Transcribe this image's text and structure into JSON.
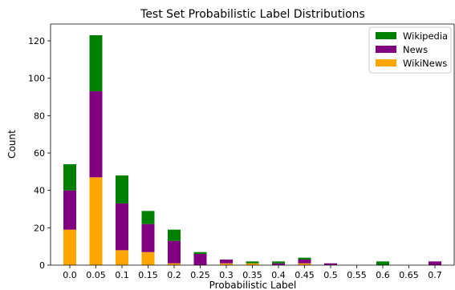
{
  "chart_data": {
    "type": "bar",
    "stacked": true,
    "title": "Test Set Probabilistic Label Distributions",
    "xlabel": "Probabilistic Label",
    "ylabel": "Count",
    "ylim": [
      0,
      129
    ],
    "yticks": [
      0,
      20,
      40,
      60,
      80,
      100,
      120
    ],
    "categories": [
      "0.0",
      "0.05",
      "0.1",
      "0.15",
      "0.2",
      "0.25",
      "0.3",
      "0.35",
      "0.4",
      "0.45",
      "0.5",
      "0.55",
      "0.6",
      "0.65",
      "0.7"
    ],
    "series": [
      {
        "name": "WikiNews",
        "color": "#ffa500",
        "values": [
          19,
          47,
          8,
          7,
          1,
          0,
          1,
          1,
          0,
          1,
          0,
          0,
          0,
          0,
          0
        ]
      },
      {
        "name": "News",
        "color": "#800080",
        "values": [
          21,
          46,
          25,
          15,
          12,
          6,
          2,
          0,
          1,
          2,
          1,
          0,
          0,
          0,
          2
        ]
      },
      {
        "name": "Wikipedia",
        "color": "#008000",
        "values": [
          14,
          30,
          15,
          7,
          6,
          1,
          0,
          1,
          1,
          1,
          0,
          0,
          2,
          0,
          0
        ]
      }
    ],
    "legend": {
      "placement": "top-right",
      "order": [
        "Wikipedia",
        "News",
        "WikiNews"
      ]
    },
    "grid": false
  }
}
